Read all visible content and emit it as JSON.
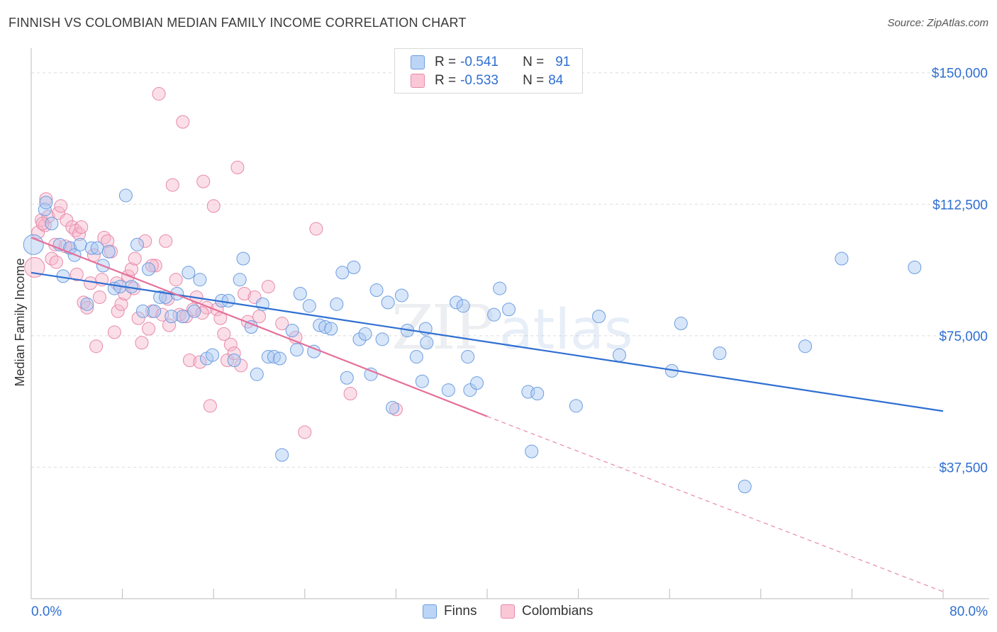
{
  "title": "FINNISH VS COLOMBIAN MEDIAN FAMILY INCOME CORRELATION CHART",
  "source": "Source: ZipAtlas.com",
  "watermark": {
    "zip": "ZIP",
    "atlas": "atlas"
  },
  "legend": {
    "rows": [
      {
        "r_label": "R =",
        "r_value": "-0.541",
        "n_label": "N =",
        "n_value": "91",
        "color": "#a9c8f2",
        "border": "#6b9de0"
      },
      {
        "r_label": "R =",
        "r_value": "-0.533",
        "n_label": "N =",
        "n_value": "84",
        "color": "#f7b8cc",
        "border": "#e889a8"
      }
    ]
  },
  "bottom_legend": [
    {
      "label": "Finns",
      "color": "#a9c8f2",
      "border": "#6b9de0"
    },
    {
      "label": "Colombians",
      "color": "#f7b8cc",
      "border": "#e889a8"
    }
  ],
  "chart_data": {
    "type": "scatter",
    "title": "FINNISH VS COLOMBIAN MEDIAN FAMILY INCOME CORRELATION CHART",
    "xlabel": "",
    "ylabel": "Median Family Income",
    "xlim": [
      0,
      80
    ],
    "ylim": [
      0,
      155000
    ],
    "x_tick_labels": {
      "min": "0.0%",
      "max": "80.0%"
    },
    "y_ticks": [
      {
        "value": 37500,
        "label": "$37,500"
      },
      {
        "value": 75000,
        "label": "$75,000"
      },
      {
        "value": 112500,
        "label": "$112,500"
      },
      {
        "value": 150000,
        "label": "$150,000"
      }
    ],
    "series": [
      {
        "name": "Finns",
        "color": "#5b8fd8",
        "trend": {
          "x0": 0,
          "y0": 93000,
          "x1": 80,
          "y1": 53500,
          "dashed_to": null
        },
        "points": [
          [
            0.2,
            101000
          ],
          [
            1.2,
            111000
          ],
          [
            1.3,
            113000
          ],
          [
            1.8,
            107000
          ],
          [
            2.5,
            101000
          ],
          [
            2.8,
            92000
          ],
          [
            3.4,
            100000
          ],
          [
            3.8,
            98000
          ],
          [
            4.3,
            101000
          ],
          [
            4.9,
            84000
          ],
          [
            5.3,
            100000
          ],
          [
            5.8,
            100000
          ],
          [
            6.3,
            95000
          ],
          [
            6.8,
            99000
          ],
          [
            7.3,
            88500
          ],
          [
            7.8,
            89000
          ],
          [
            8.3,
            115000
          ],
          [
            8.8,
            89000
          ],
          [
            9.3,
            101000
          ],
          [
            9.8,
            82000
          ],
          [
            10.3,
            94000
          ],
          [
            10.8,
            82000
          ],
          [
            11.3,
            86000
          ],
          [
            11.8,
            86000
          ],
          [
            12.3,
            80500
          ],
          [
            12.8,
            87000
          ],
          [
            13.3,
            80500
          ],
          [
            13.8,
            93000
          ],
          [
            14.3,
            82000
          ],
          [
            14.8,
            91000
          ],
          [
            15.4,
            68500
          ],
          [
            15.9,
            69500
          ],
          [
            16.7,
            85000
          ],
          [
            17.3,
            85000
          ],
          [
            17.8,
            68000
          ],
          [
            18.3,
            91000
          ],
          [
            18.6,
            97000
          ],
          [
            19.3,
            77500
          ],
          [
            19.8,
            64000
          ],
          [
            20.3,
            84000
          ],
          [
            20.8,
            69000
          ],
          [
            21.3,
            69000
          ],
          [
            21.8,
            68500
          ],
          [
            22.0,
            41000
          ],
          [
            22.9,
            76500
          ],
          [
            23.3,
            71000
          ],
          [
            23.6,
            87000
          ],
          [
            24.4,
            83500
          ],
          [
            24.8,
            70500
          ],
          [
            25.3,
            78000
          ],
          [
            25.8,
            77500
          ],
          [
            26.3,
            77000
          ],
          [
            26.8,
            84000
          ],
          [
            27.3,
            93000
          ],
          [
            27.7,
            63000
          ],
          [
            28.3,
            94500
          ],
          [
            28.8,
            74000
          ],
          [
            29.3,
            75500
          ],
          [
            29.8,
            64000
          ],
          [
            30.3,
            88000
          ],
          [
            30.8,
            74000
          ],
          [
            31.3,
            84500
          ],
          [
            31.7,
            54500
          ],
          [
            32.5,
            86500
          ],
          [
            33.0,
            76500
          ],
          [
            33.8,
            69000
          ],
          [
            34.3,
            62000
          ],
          [
            34.6,
            77000
          ],
          [
            34.7,
            73000
          ],
          [
            36.6,
            59500
          ],
          [
            37.3,
            84500
          ],
          [
            37.9,
            83500
          ],
          [
            38.3,
            69000
          ],
          [
            38.5,
            59500
          ],
          [
            39.1,
            61500
          ],
          [
            40.6,
            81000
          ],
          [
            41.1,
            88500
          ],
          [
            41.9,
            82500
          ],
          [
            43.6,
            59000
          ],
          [
            43.9,
            42000
          ],
          [
            44.4,
            58500
          ],
          [
            47.8,
            55000
          ],
          [
            49.8,
            80500
          ],
          [
            51.6,
            69500
          ],
          [
            56.2,
            65000
          ],
          [
            57.0,
            78500
          ],
          [
            60.4,
            70000
          ],
          [
            62.6,
            32000
          ],
          [
            67.9,
            72000
          ],
          [
            71.1,
            97000
          ],
          [
            77.5,
            94500
          ]
        ]
      },
      {
        "name": "Colombians",
        "color": "#e889a8",
        "trend": {
          "x0": 0,
          "y0": 103000,
          "x1": 40,
          "y1": 52000,
          "dashed_to": {
            "x": 80,
            "y": 2000
          }
        },
        "points": [
          [
            0.3,
            94500
          ],
          [
            0.6,
            104500
          ],
          [
            0.9,
            108000
          ],
          [
            1.2,
            106500
          ],
          [
            1.3,
            114000
          ],
          [
            1.5,
            109000
          ],
          [
            1.8,
            97000
          ],
          [
            2.1,
            101000
          ],
          [
            2.4,
            110000
          ],
          [
            2.6,
            112000
          ],
          [
            3.1,
            108000
          ],
          [
            3.4,
            100000
          ],
          [
            3.6,
            106000
          ],
          [
            3.9,
            105000
          ],
          [
            4.2,
            104000
          ],
          [
            4.4,
            106000
          ],
          [
            4.6,
            84500
          ],
          [
            4.9,
            83000
          ],
          [
            5.2,
            90000
          ],
          [
            5.5,
            98000
          ],
          [
            5.7,
            72000
          ],
          [
            6.0,
            86000
          ],
          [
            6.4,
            103000
          ],
          [
            6.7,
            102000
          ],
          [
            7.0,
            99000
          ],
          [
            7.3,
            76000
          ],
          [
            7.6,
            82000
          ],
          [
            7.9,
            84000
          ],
          [
            8.2,
            87000
          ],
          [
            8.5,
            92000
          ],
          [
            8.8,
            94000
          ],
          [
            9.1,
            97000
          ],
          [
            9.4,
            80000
          ],
          [
            9.7,
            73000
          ],
          [
            10.0,
            102000
          ],
          [
            10.3,
            77000
          ],
          [
            10.6,
            82000
          ],
          [
            10.9,
            95000
          ],
          [
            11.2,
            144000
          ],
          [
            11.5,
            81000
          ],
          [
            11.8,
            102000
          ],
          [
            12.1,
            78000
          ],
          [
            12.4,
            118000
          ],
          [
            12.7,
            91000
          ],
          [
            13.0,
            81000
          ],
          [
            13.3,
            136000
          ],
          [
            13.6,
            80500
          ],
          [
            13.9,
            68000
          ],
          [
            14.2,
            82500
          ],
          [
            14.5,
            86000
          ],
          [
            14.8,
            67500
          ],
          [
            15.1,
            119000
          ],
          [
            15.4,
            83000
          ],
          [
            15.7,
            55000
          ],
          [
            16.0,
            112000
          ],
          [
            16.3,
            82500
          ],
          [
            16.6,
            80000
          ],
          [
            16.9,
            75500
          ],
          [
            17.2,
            68000
          ],
          [
            17.5,
            72500
          ],
          [
            17.8,
            70000
          ],
          [
            18.1,
            123000
          ],
          [
            18.4,
            66500
          ],
          [
            18.7,
            87000
          ],
          [
            19.0,
            79000
          ],
          [
            19.6,
            86000
          ],
          [
            20.0,
            80500
          ],
          [
            20.8,
            89000
          ],
          [
            22.0,
            78500
          ],
          [
            23.2,
            74500
          ],
          [
            24.0,
            47500
          ],
          [
            25.0,
            105500
          ],
          [
            28.0,
            58500
          ],
          [
            32.0,
            54000
          ],
          [
            10.6,
            95000
          ],
          [
            7.5,
            90000
          ],
          [
            3.0,
            100500
          ],
          [
            1.0,
            107000
          ],
          [
            2.2,
            96000
          ],
          [
            4.0,
            92500
          ],
          [
            6.2,
            91000
          ],
          [
            9.0,
            88500
          ],
          [
            12.0,
            85500
          ],
          [
            15.0,
            81500
          ]
        ]
      }
    ]
  }
}
